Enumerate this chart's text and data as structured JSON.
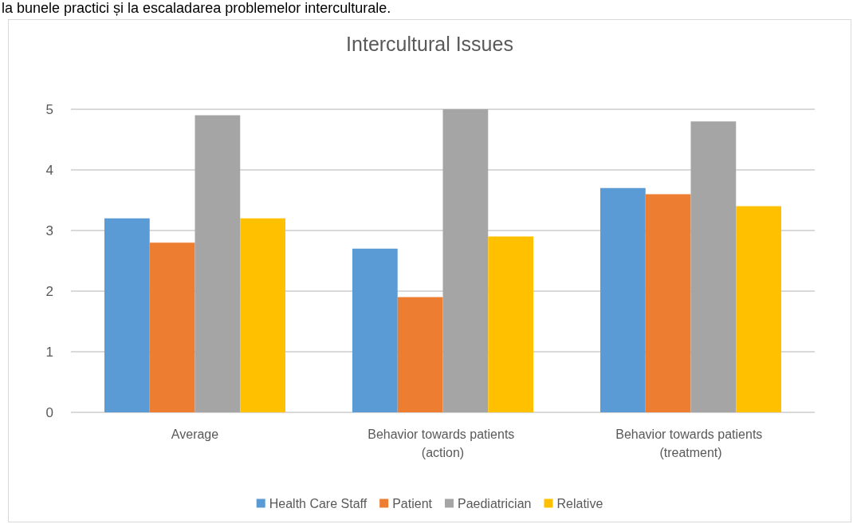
{
  "chart_data": {
    "type": "bar",
    "title": "Intercultural Issues",
    "categories": [
      "Average",
      "Behavior towards patients (action)",
      "Behavior towards patients (treatment)"
    ],
    "series": [
      {
        "name": "Health Care Staff",
        "color": "#5b9bd5",
        "values": [
          3.2,
          2.7,
          3.7
        ]
      },
      {
        "name": "Patient",
        "color": "#ed7d31",
        "values": [
          2.8,
          1.9,
          3.6
        ]
      },
      {
        "name": "Paediatrician",
        "color": "#a5a5a5",
        "values": [
          4.9,
          5.0,
          4.8
        ]
      },
      {
        "name": "Relative",
        "color": "#ffc000",
        "values": [
          3.2,
          2.9,
          3.4
        ]
      }
    ],
    "ylim": [
      0,
      5
    ],
    "yticks": [
      0,
      1,
      2,
      3,
      4,
      5
    ],
    "grid": "y",
    "legend": "bottom",
    "annotations": [
      "la bunele practici și la escaladarea problemelor interculturale."
    ]
  }
}
